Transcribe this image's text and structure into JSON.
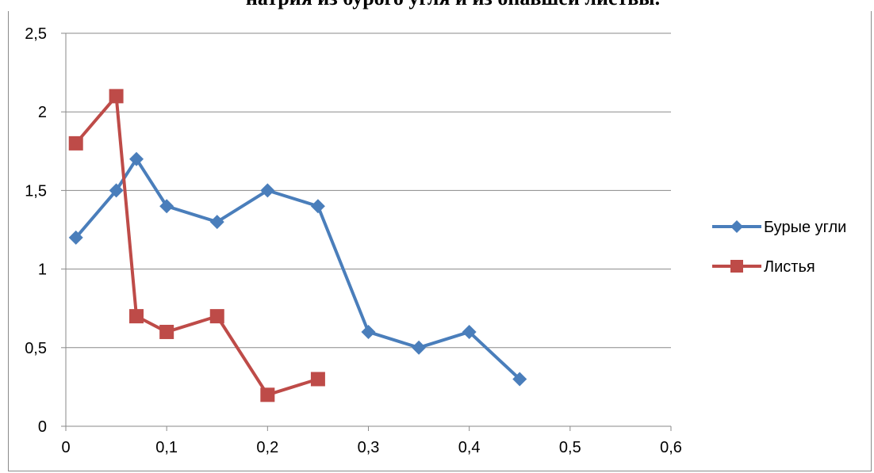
{
  "chart_data": {
    "type": "line",
    "title": "натрия из бурого угля и из опавшей листвы.",
    "xlabel": "",
    "ylabel": "",
    "xlim": [
      0,
      0.6
    ],
    "ylim": [
      0,
      2.5
    ],
    "x_ticks": [
      0,
      0.1,
      0.2,
      0.3,
      0.4,
      0.5,
      0.6
    ],
    "x_tick_labels": [
      "0",
      "0,1",
      "0,2",
      "0,3",
      "0,4",
      "0,5",
      "0,6"
    ],
    "y_ticks": [
      0,
      0.5,
      1,
      1.5,
      2,
      2.5
    ],
    "y_tick_labels": [
      "0",
      "0,5",
      "1",
      "1,5",
      "2",
      "2,5"
    ],
    "grid": "horizontal",
    "legend_position": "right",
    "series": [
      {
        "name": "Бурые угли",
        "color": "#4a7ebb",
        "marker": "diamond",
        "x": [
          0.01,
          0.05,
          0.07,
          0.1,
          0.15,
          0.2,
          0.25,
          0.3,
          0.35,
          0.4,
          0.45
        ],
        "y": [
          1.2,
          1.5,
          1.7,
          1.4,
          1.3,
          1.5,
          1.4,
          0.6,
          0.5,
          0.6,
          0.3
        ]
      },
      {
        "name": "Листья",
        "color": "#be4b48",
        "marker": "square",
        "x": [
          0.01,
          0.05,
          0.07,
          0.1,
          0.15,
          0.2,
          0.25
        ],
        "y": [
          1.8,
          2.1,
          0.7,
          0.6,
          0.7,
          0.2,
          0.3
        ]
      }
    ]
  }
}
